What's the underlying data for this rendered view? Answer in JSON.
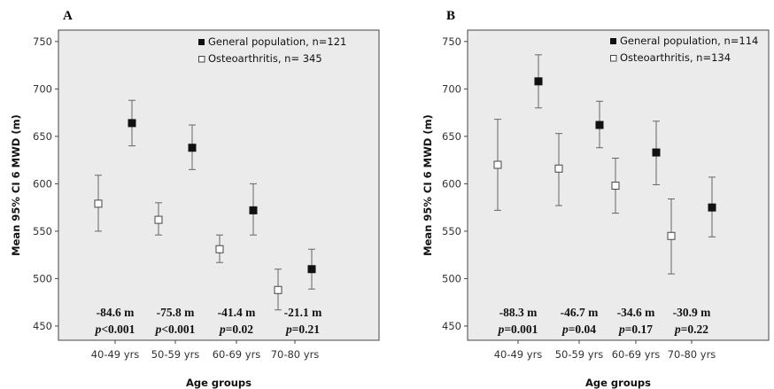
{
  "chart_data": [
    {
      "type": "scatter",
      "panel_label": "A",
      "xlabel": "Age groups",
      "ylabel": "Mean 95% CI 6 MWD (m)",
      "ylim": [
        435,
        762
      ],
      "yticks": [
        450,
        500,
        550,
        600,
        650,
        700,
        750
      ],
      "categories": [
        "40-49 yrs",
        "50-59 yrs",
        "60-69 yrs",
        "70-80 yrs"
      ],
      "legend_position": "top-right",
      "series": [
        {
          "name": "General population, n=121",
          "marker": "filled-square",
          "color": "#111111",
          "mean": [
            664,
            638,
            572,
            510
          ],
          "ci_low": [
            640,
            615,
            546,
            489
          ],
          "ci_high": [
            688,
            662,
            600,
            531
          ]
        },
        {
          "name": "Osteoarthritis, n= 345",
          "marker": "open-square",
          "color": "#555555",
          "mean": [
            579,
            562,
            531,
            488
          ],
          "ci_low": [
            550,
            546,
            517,
            467
          ],
          "ci_high": [
            609,
            580,
            546,
            510
          ]
        }
      ],
      "annotations": [
        {
          "diff": "-84.6 m",
          "p_label": "p",
          "p_value": "<0.001"
        },
        {
          "diff": "-75.8 m",
          "p_label": "p",
          "p_value": "<0.001"
        },
        {
          "diff": "-41.4 m",
          "p_label": "p",
          "p_value": "=0.02"
        },
        {
          "diff": "-21.1 m",
          "p_label": "p",
          "p_value": "=0.21"
        }
      ]
    },
    {
      "type": "scatter",
      "panel_label": "B",
      "xlabel": "Age groups",
      "ylabel": "Mean 95% CI 6 MWD (m)",
      "ylim": [
        435,
        762
      ],
      "yticks": [
        450,
        500,
        550,
        600,
        650,
        700,
        750
      ],
      "categories": [
        "40-49 yrs",
        "50-59 yrs",
        "60-69 yrs",
        "70-80 yrs"
      ],
      "legend_position": "top-right",
      "series": [
        {
          "name": "General population, n=114",
          "marker": "filled-square",
          "color": "#111111",
          "mean": [
            708,
            662,
            633,
            575
          ],
          "ci_low": [
            680,
            638,
            599,
            544
          ],
          "ci_high": [
            736,
            687,
            666,
            607
          ]
        },
        {
          "name": "Osteoarthritis, n=134",
          "marker": "open-square",
          "color": "#555555",
          "mean": [
            620,
            616,
            598,
            545
          ],
          "ci_low": [
            572,
            577,
            569,
            505
          ],
          "ci_high": [
            668,
            653,
            627,
            584
          ]
        }
      ],
      "annotations": [
        {
          "diff": "-88.3 m",
          "p_label": "p",
          "p_value": "=0.001"
        },
        {
          "diff": "-46.7 m",
          "p_label": "p",
          "p_value": "=0.04"
        },
        {
          "diff": "-34.6 m",
          "p_label": "p",
          "p_value": "=0.17"
        },
        {
          "diff": "-30.9 m",
          "p_label": "p",
          "p_value": "=0.22"
        }
      ]
    }
  ]
}
